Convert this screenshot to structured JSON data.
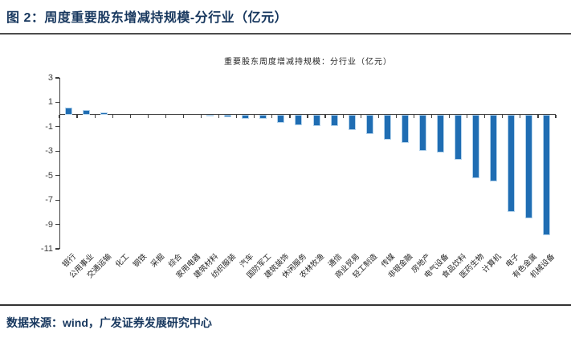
{
  "figure": {
    "caption": "图 2：周度重要股东增减持规模-分行业（亿元）",
    "source": "数据来源：wind，广发证券发展研究中心"
  },
  "chart_data": {
    "type": "bar",
    "title": "重要股东周度增减持规模：分行业（亿元）",
    "categories": [
      "银行",
      "公用事业",
      "交通运输",
      "化工",
      "钢铁",
      "采掘",
      "综合",
      "家用电器",
      "建筑材料",
      "纺织服装",
      "汽车",
      "国防军工",
      "建筑装饰",
      "休闲服务",
      "农林牧渔",
      "通信",
      "商业贸易",
      "轻工制造",
      "传媒",
      "非银金融",
      "房地产",
      "电气设备",
      "食品饮料",
      "医药生物",
      "计算机",
      "电子",
      "有色金属",
      "机械设备"
    ],
    "values": [
      0.6,
      0.4,
      0.15,
      0.02,
      0.01,
      0.0,
      -0.02,
      -0.04,
      -0.15,
      -0.25,
      -0.35,
      -0.35,
      -0.65,
      -0.85,
      -0.95,
      -0.95,
      -1.25,
      -1.6,
      -2.05,
      -2.3,
      -2.95,
      -3.1,
      -3.7,
      -5.2,
      -5.5,
      -8.0,
      -8.5,
      -9.9
    ],
    "xlabel": "",
    "ylabel": "",
    "ylim": [
      -11,
      3
    ],
    "yticks": [
      3,
      1,
      -1,
      -3,
      -5,
      -7,
      -9,
      -11
    ],
    "grid": false,
    "legend_position": "none",
    "bar_color": "#1F6DB3",
    "bar_edge_color": "#B4D3EC",
    "axis_color": "#404040"
  }
}
